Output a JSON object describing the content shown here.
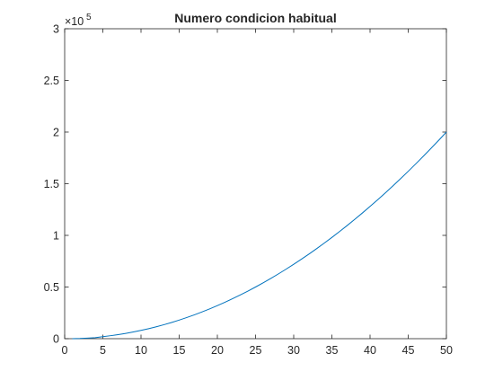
{
  "chart_data": {
    "type": "line",
    "title": "Numero condicion habitual",
    "xlabel": "",
    "ylabel": "",
    "xlim": [
      0,
      50
    ],
    "ylim": [
      0,
      300000
    ],
    "x_ticks": [
      0,
      5,
      10,
      15,
      20,
      25,
      30,
      35,
      40,
      45,
      50
    ],
    "x_tick_labels": [
      "0",
      "5",
      "10",
      "15",
      "20",
      "25",
      "30",
      "35",
      "40",
      "45",
      "50"
    ],
    "y_ticks": [
      0,
      50000,
      100000,
      150000,
      200000,
      250000,
      300000
    ],
    "y_tick_labels": [
      "0",
      "0.5",
      "1",
      "1.5",
      "2",
      "2.5",
      "3"
    ],
    "y_exponent_label": "×10",
    "y_exponent_power": "5",
    "grid": false,
    "line_color": "#0072BD",
    "series": [
      {
        "x": [
          1,
          2,
          3,
          4,
          5,
          6,
          7,
          8,
          9,
          10,
          11,
          12,
          13,
          14,
          15,
          16,
          17,
          18,
          19,
          20,
          21,
          22,
          23,
          24,
          25,
          26,
          27,
          28,
          29,
          30,
          31,
          32,
          33,
          34,
          35,
          36,
          37,
          38,
          39,
          40,
          41,
          42,
          43,
          44,
          45,
          46,
          47,
          48,
          49,
          50
        ],
        "y": [
          1,
          183,
          550,
          1000,
          2000,
          2880,
          3920,
          5120,
          6480,
          8000,
          9680,
          11520,
          13520,
          15680,
          18000,
          20480,
          23120,
          25920,
          28880,
          32000,
          35280,
          38720,
          42320,
          46080,
          50000,
          54080,
          58320,
          62720,
          67280,
          72000,
          76880,
          81920,
          87120,
          92480,
          98000,
          103680,
          109520,
          115520,
          121680,
          128000,
          134480,
          141120,
          147920,
          154880,
          162000,
          169280,
          176720,
          184320,
          192080,
          200000
        ]
      }
    ]
  }
}
